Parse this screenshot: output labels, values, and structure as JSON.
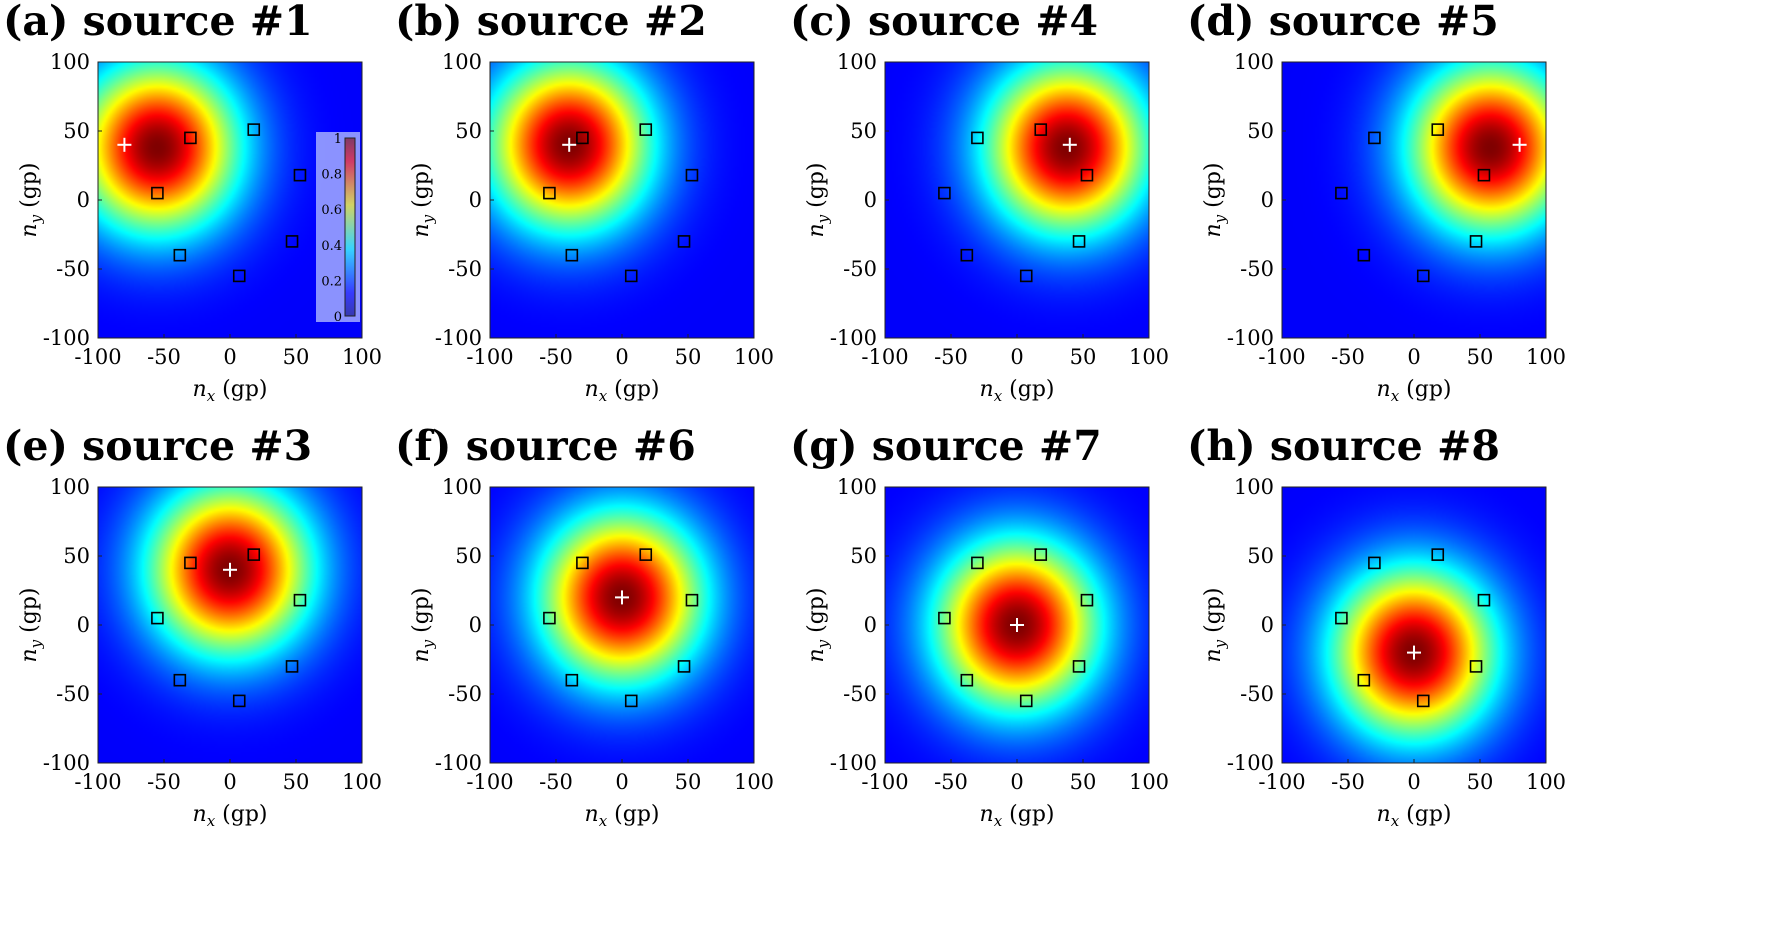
{
  "figure": {
    "colorbar": {
      "ticks": [
        0,
        0.2,
        0.4,
        0.6,
        0.8,
        1
      ],
      "tick_labels": [
        "0",
        "0.2",
        "0.4",
        "0.6",
        "0.8",
        "1"
      ],
      "colormap": "jet"
    },
    "sensors": [
      [
        -55,
        5
      ],
      [
        -30,
        45
      ],
      [
        -38,
        -40
      ],
      [
        18,
        51
      ],
      [
        53,
        18
      ],
      [
        47,
        -30
      ],
      [
        7,
        -55
      ]
    ]
  },
  "chart_data": [
    {
      "type": "heatmap",
      "panel": "(a)",
      "title": "source #1",
      "xlabel": "n_x (gp)",
      "ylabel": "n_y (gp)",
      "xlim": [
        -100,
        100
      ],
      "ylim": [
        -100,
        100
      ],
      "xticks": [
        -100,
        -50,
        0,
        50,
        100
      ],
      "yticks": [
        -100,
        -50,
        0,
        50,
        100
      ],
      "source": [
        -80,
        40
      ],
      "sensors": [
        [
          -55,
          5
        ],
        [
          -30,
          45
        ],
        [
          -38,
          -40
        ],
        [
          18,
          51
        ],
        [
          53,
          18
        ],
        [
          47,
          -30
        ],
        [
          7,
          -55
        ]
      ],
      "peak": [
        -55,
        38
      ],
      "has_colorbar": true
    },
    {
      "type": "heatmap",
      "panel": "(b)",
      "title": "source #2",
      "xlabel": "n_x (gp)",
      "ylabel": "n_y (gp)",
      "xlim": [
        -100,
        100
      ],
      "ylim": [
        -100,
        100
      ],
      "xticks": [
        -100,
        -50,
        0,
        50,
        100
      ],
      "yticks": [
        -100,
        -50,
        0,
        50,
        100
      ],
      "source": [
        -40,
        40
      ],
      "sensors": [
        [
          -55,
          5
        ],
        [
          -30,
          45
        ],
        [
          -38,
          -40
        ],
        [
          18,
          51
        ],
        [
          53,
          18
        ],
        [
          47,
          -30
        ],
        [
          7,
          -55
        ]
      ],
      "peak": [
        -40,
        40
      ],
      "has_colorbar": false
    },
    {
      "type": "heatmap",
      "panel": "(c)",
      "title": "source #4",
      "xlabel": "n_x (gp)",
      "ylabel": "n_y (gp)",
      "xlim": [
        -100,
        100
      ],
      "ylim": [
        -100,
        100
      ],
      "xticks": [
        -100,
        -50,
        0,
        50,
        100
      ],
      "yticks": [
        -100,
        -50,
        0,
        50,
        100
      ],
      "source": [
        40,
        40
      ],
      "sensors": [
        [
          -55,
          5
        ],
        [
          -30,
          45
        ],
        [
          -38,
          -40
        ],
        [
          18,
          51
        ],
        [
          53,
          18
        ],
        [
          47,
          -30
        ],
        [
          7,
          -55
        ]
      ],
      "peak": [
        38,
        38
      ],
      "has_colorbar": false
    },
    {
      "type": "heatmap",
      "panel": "(d)",
      "title": "source #5",
      "xlabel": "n_x (gp)",
      "ylabel": "n_y (gp)",
      "xlim": [
        -100,
        100
      ],
      "ylim": [
        -100,
        100
      ],
      "xticks": [
        -100,
        -50,
        0,
        50,
        100
      ],
      "yticks": [
        -100,
        -50,
        0,
        50,
        100
      ],
      "source": [
        80,
        40
      ],
      "sensors": [
        [
          -55,
          5
        ],
        [
          -30,
          45
        ],
        [
          -38,
          -40
        ],
        [
          18,
          51
        ],
        [
          53,
          18
        ],
        [
          47,
          -30
        ],
        [
          7,
          -55
        ]
      ],
      "peak": [
        58,
        38
      ],
      "has_colorbar": false
    },
    {
      "type": "heatmap",
      "panel": "(e)",
      "title": "source #3",
      "xlabel": "n_x (gp)",
      "ylabel": "n_y (gp)",
      "xlim": [
        -100,
        100
      ],
      "ylim": [
        -100,
        100
      ],
      "xticks": [
        -100,
        -50,
        0,
        50,
        100
      ],
      "yticks": [
        -100,
        -50,
        0,
        50,
        100
      ],
      "source": [
        0,
        40
      ],
      "sensors": [
        [
          -55,
          5
        ],
        [
          -30,
          45
        ],
        [
          -38,
          -40
        ],
        [
          18,
          51
        ],
        [
          53,
          18
        ],
        [
          47,
          -30
        ],
        [
          7,
          -55
        ]
      ],
      "peak": [
        0,
        40
      ],
      "has_colorbar": false
    },
    {
      "type": "heatmap",
      "panel": "(f)",
      "title": "source #6",
      "xlabel": "n_x (gp)",
      "ylabel": "n_y (gp)",
      "xlim": [
        -100,
        100
      ],
      "ylim": [
        -100,
        100
      ],
      "xticks": [
        -100,
        -50,
        0,
        50,
        100
      ],
      "yticks": [
        -100,
        -50,
        0,
        50,
        100
      ],
      "source": [
        0,
        20
      ],
      "sensors": [
        [
          -55,
          5
        ],
        [
          -30,
          45
        ],
        [
          -38,
          -40
        ],
        [
          18,
          51
        ],
        [
          53,
          18
        ],
        [
          47,
          -30
        ],
        [
          7,
          -55
        ]
      ],
      "peak": [
        0,
        20
      ],
      "has_colorbar": false
    },
    {
      "type": "heatmap",
      "panel": "(g)",
      "title": "source #7",
      "xlabel": "n_x (gp)",
      "ylabel": "n_y (gp)",
      "xlim": [
        -100,
        100
      ],
      "ylim": [
        -100,
        100
      ],
      "xticks": [
        -100,
        -50,
        0,
        50,
        100
      ],
      "yticks": [
        -100,
        -50,
        0,
        50,
        100
      ],
      "source": [
        0,
        0
      ],
      "sensors": [
        [
          -55,
          5
        ],
        [
          -30,
          45
        ],
        [
          -38,
          -40
        ],
        [
          18,
          51
        ],
        [
          53,
          18
        ],
        [
          47,
          -30
        ],
        [
          7,
          -55
        ]
      ],
      "peak": [
        0,
        0
      ],
      "has_colorbar": false
    },
    {
      "type": "heatmap",
      "panel": "(h)",
      "title": "source #8",
      "xlabel": "n_x (gp)",
      "ylabel": "n_y (gp)",
      "xlim": [
        -100,
        100
      ],
      "ylim": [
        -100,
        100
      ],
      "xticks": [
        -100,
        -50,
        0,
        50,
        100
      ],
      "yticks": [
        -100,
        -50,
        0,
        50,
        100
      ],
      "source": [
        0,
        -20
      ],
      "sensors": [
        [
          -55,
          5
        ],
        [
          -30,
          45
        ],
        [
          -38,
          -40
        ],
        [
          18,
          51
        ],
        [
          53,
          18
        ],
        [
          47,
          -30
        ],
        [
          7,
          -55
        ]
      ],
      "peak": [
        0,
        -20
      ],
      "has_colorbar": false
    }
  ]
}
